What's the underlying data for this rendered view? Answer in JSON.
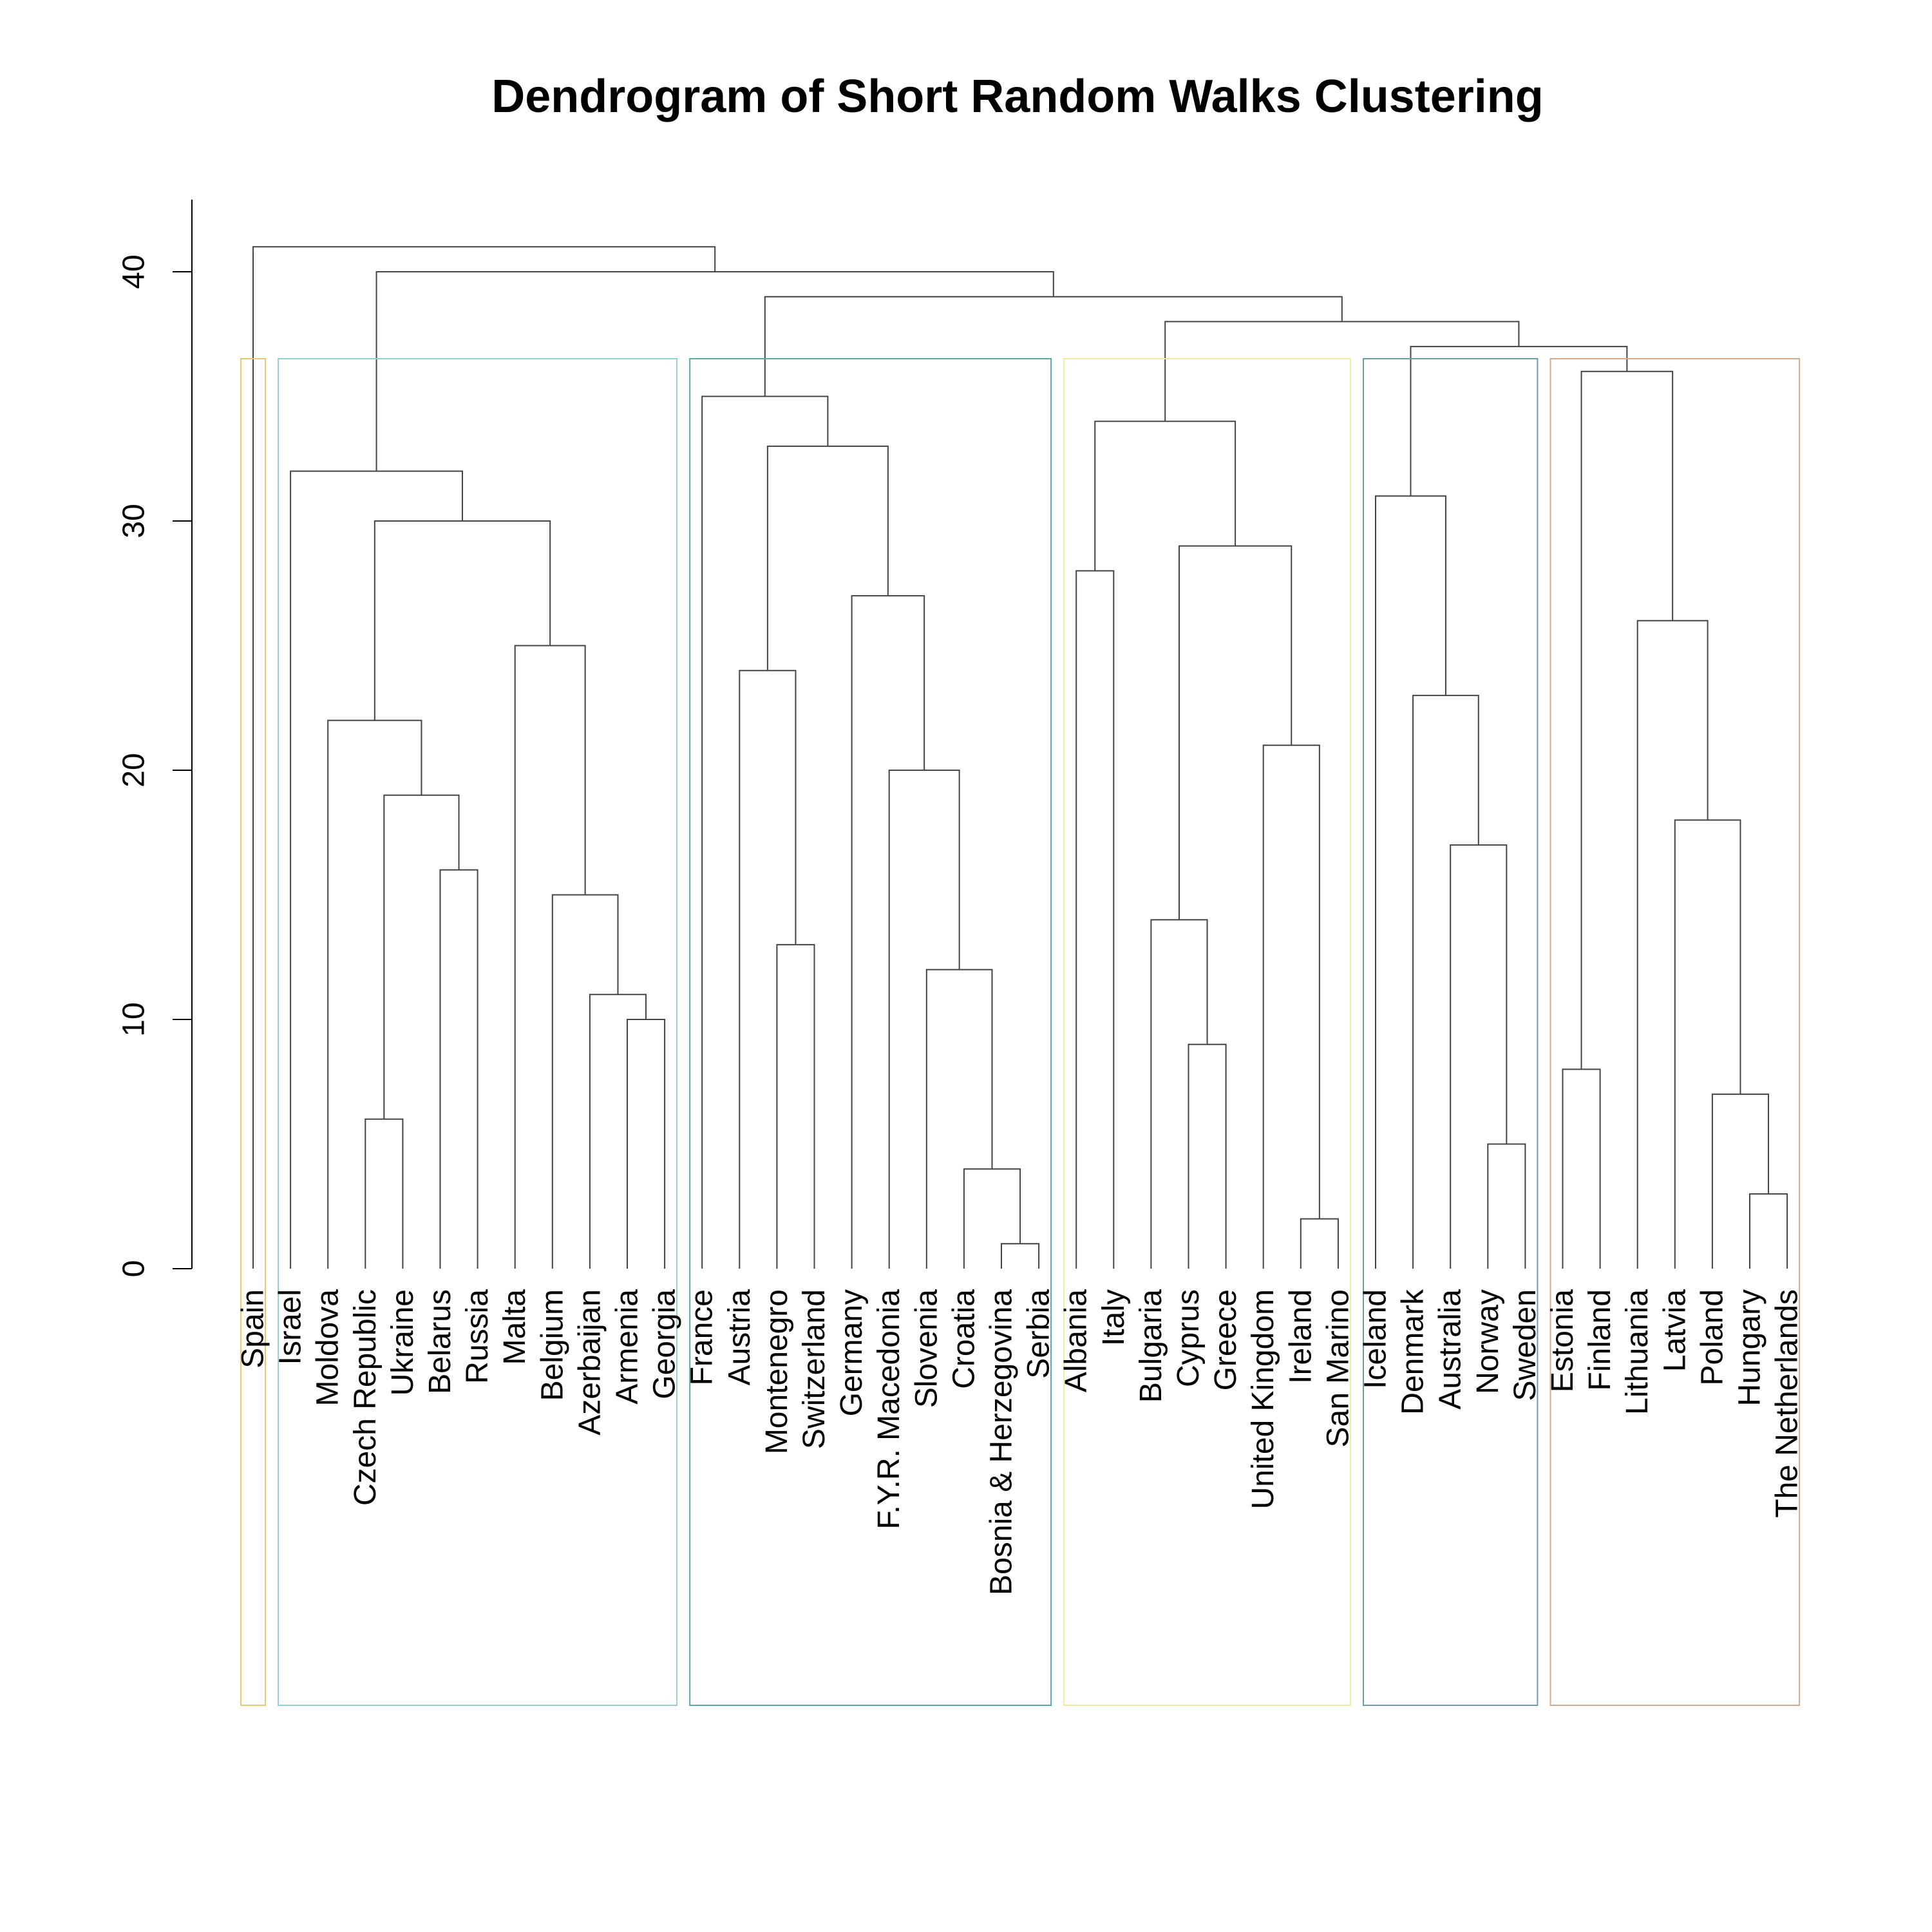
{
  "chart_data": {
    "type": "dendrogram",
    "title": "Dendrogram of Short Random Walks Clustering",
    "xlabel": "",
    "ylabel": "",
    "ylim": [
      0,
      43
    ],
    "y_ticks": [
      0,
      10,
      20,
      30,
      40
    ],
    "leaves": [
      "Spain",
      "Israel",
      "Moldova",
      "Czech Republic",
      "Ukraine",
      "Belarus",
      "Russia",
      "Malta",
      "Belgium",
      "Azerbaijan",
      "Armenia",
      "Georgia",
      "France",
      "Austria",
      "Montenegro",
      "Switzerland",
      "Germany",
      "F.Y.R. Macedonia",
      "Slovenia",
      "Croatia",
      "Bosnia & Herzegovina",
      "Serbia",
      "Albania",
      "Italy",
      "Bulgaria",
      "Cyprus",
      "Greece",
      "United Kingdom",
      "Ireland",
      "San Marino",
      "Iceland",
      "Denmark",
      "Australia",
      "Norway",
      "Sweden",
      "Estonia",
      "Finland",
      "Lithuania",
      "Latvia",
      "Poland",
      "Hungary",
      "The Netherlands"
    ],
    "merges": [
      {
        "id": "m1",
        "left": "Czech Republic",
        "right": "Ukraine",
        "height": 6
      },
      {
        "id": "m2",
        "left": "Belarus",
        "right": "Russia",
        "height": 16
      },
      {
        "id": "m3",
        "left": "m1",
        "right": "m2",
        "height": 19
      },
      {
        "id": "m4",
        "left": "Moldova",
        "right": "m3",
        "height": 22
      },
      {
        "id": "m5",
        "left": "Armenia",
        "right": "Georgia",
        "height": 10
      },
      {
        "id": "m6",
        "left": "Azerbaijan",
        "right": "m5",
        "height": 11
      },
      {
        "id": "m7",
        "left": "Belgium",
        "right": "m6",
        "height": 15
      },
      {
        "id": "m8",
        "left": "Malta",
        "right": "m7",
        "height": 25
      },
      {
        "id": "m9",
        "left": "m4",
        "right": "m8",
        "height": 30
      },
      {
        "id": "m10",
        "left": "Israel",
        "right": "m9",
        "height": 32
      },
      {
        "id": "m11",
        "left": "Bosnia & Herzegovina",
        "right": "Serbia",
        "height": 1
      },
      {
        "id": "m12",
        "left": "Croatia",
        "right": "m11",
        "height": 4
      },
      {
        "id": "m13",
        "left": "Slovenia",
        "right": "m12",
        "height": 12
      },
      {
        "id": "m14",
        "left": "F.Y.R. Macedonia",
        "right": "m13",
        "height": 20
      },
      {
        "id": "m15",
        "left": "Germany",
        "right": "m14",
        "height": 27
      },
      {
        "id": "m16",
        "left": "Montenegro",
        "right": "Switzerland",
        "height": 13
      },
      {
        "id": "m17",
        "left": "Austria",
        "right": "m16",
        "height": 24
      },
      {
        "id": "m18",
        "left": "m17",
        "right": "m15",
        "height": 33
      },
      {
        "id": "m19",
        "left": "France",
        "right": "m18",
        "height": 35
      },
      {
        "id": "m20",
        "left": "Albania",
        "right": "Italy",
        "height": 28
      },
      {
        "id": "m21",
        "left": "Cyprus",
        "right": "Greece",
        "height": 9
      },
      {
        "id": "m22",
        "left": "Bulgaria",
        "right": "m21",
        "height": 14
      },
      {
        "id": "m23",
        "left": "Ireland",
        "right": "San Marino",
        "height": 2
      },
      {
        "id": "m24",
        "left": "United Kingdom",
        "right": "m23",
        "height": 21
      },
      {
        "id": "m25",
        "left": "m22",
        "right": "m24",
        "height": 29
      },
      {
        "id": "m26",
        "left": "m20",
        "right": "m25",
        "height": 34
      },
      {
        "id": "m27",
        "left": "Norway",
        "right": "Sweden",
        "height": 5
      },
      {
        "id": "m28",
        "left": "Australia",
        "right": "m27",
        "height": 17
      },
      {
        "id": "m29",
        "left": "Denmark",
        "right": "m28",
        "height": 23
      },
      {
        "id": "m30",
        "left": "Iceland",
        "right": "m29",
        "height": 31
      },
      {
        "id": "m31",
        "left": "Hungary",
        "right": "The Netherlands",
        "height": 3
      },
      {
        "id": "m32",
        "left": "Poland",
        "right": "m31",
        "height": 7
      },
      {
        "id": "m33",
        "left": "Latvia",
        "right": "m32",
        "height": 18
      },
      {
        "id": "m34",
        "left": "Lithuania",
        "right": "m33",
        "height": 26
      },
      {
        "id": "m35",
        "left": "Estonia",
        "right": "Finland",
        "height": 8
      },
      {
        "id": "m36",
        "left": "m35",
        "right": "m34",
        "height": 36
      },
      {
        "id": "m37",
        "left": "m30",
        "right": "m36",
        "height": 37
      },
      {
        "id": "m38",
        "left": "m26",
        "right": "m37",
        "height": 38
      },
      {
        "id": "m39",
        "left": "m19",
        "right": "m38",
        "height": 39
      },
      {
        "id": "m40",
        "left": "m10",
        "right": "m39",
        "height": 40
      },
      {
        "id": "m41",
        "left": "Spain",
        "right": "m40",
        "height": 41
      }
    ],
    "clusters": [
      {
        "first": 0,
        "last": 0,
        "color": "#E6C86E"
      },
      {
        "first": 1,
        "last": 11,
        "color": "#96CDD2"
      },
      {
        "first": 12,
        "last": 21,
        "color": "#5AA5AA"
      },
      {
        "first": 22,
        "last": 29,
        "color": "#F0EBA0"
      },
      {
        "first": 30,
        "last": 34,
        "color": "#6E9BAA"
      },
      {
        "first": 35,
        "last": 41,
        "color": "#D2AA91"
      }
    ],
    "grid": false,
    "legend": "none"
  }
}
